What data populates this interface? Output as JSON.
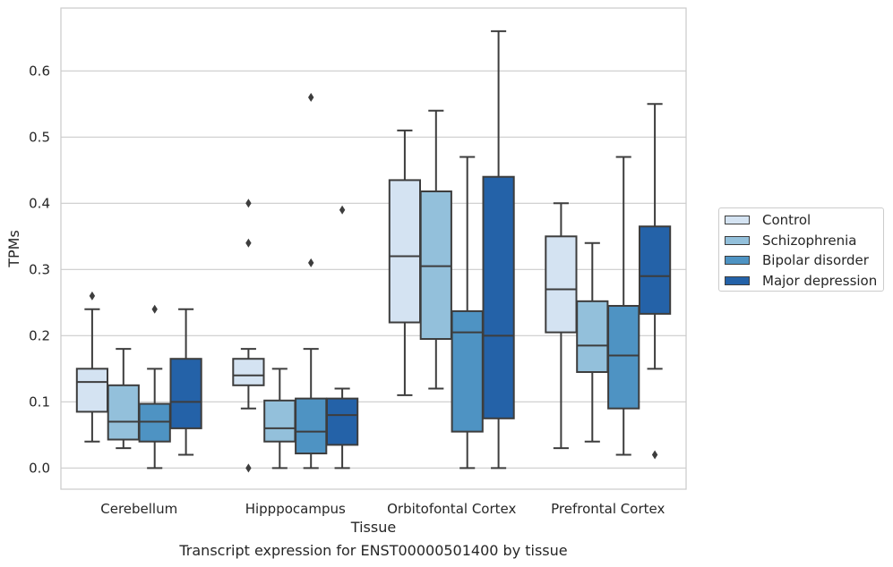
{
  "caption": "Transcript expression for ENST00000501400 by tissue",
  "colors": {
    "Control": "#d4e3f2",
    "Schizophrenia": "#93c0db",
    "Bipolar disorder": "#4e93c3",
    "Major depression": "#2462a8"
  },
  "chart_data": {
    "type": "box",
    "xlabel": "Tissue",
    "ylabel": "TPMs",
    "ylim": [
      -0.032,
      0.695
    ],
    "yticks": [
      0.0,
      0.1,
      0.2,
      0.3,
      0.4,
      0.5,
      0.6
    ],
    "ytick_labels": [
      "0.0",
      "0.1",
      "0.2",
      "0.3",
      "0.4",
      "0.5",
      "0.6"
    ],
    "grid": true,
    "legend_position": "right",
    "categories": [
      "Cerebellum",
      "Hipppocampus",
      "Orbitofontal Cortex",
      "Prefrontal Cortex"
    ],
    "series": [
      {
        "name": "Control",
        "boxes": [
          {
            "whislo": 0.04,
            "q1": 0.085,
            "med": 0.13,
            "q3": 0.15,
            "whishi": 0.24,
            "fliers": [
              0.26
            ]
          },
          {
            "whislo": 0.09,
            "q1": 0.125,
            "med": 0.14,
            "q3": 0.165,
            "whishi": 0.18,
            "fliers": [
              0.4,
              0.34,
              0.0
            ]
          },
          {
            "whislo": 0.11,
            "q1": 0.22,
            "med": 0.32,
            "q3": 0.435,
            "whishi": 0.51,
            "fliers": []
          },
          {
            "whislo": 0.03,
            "q1": 0.205,
            "med": 0.27,
            "q3": 0.35,
            "whishi": 0.4,
            "fliers": []
          }
        ]
      },
      {
        "name": "Schizophrenia",
        "boxes": [
          {
            "whislo": 0.03,
            "q1": 0.043,
            "med": 0.07,
            "q3": 0.125,
            "whishi": 0.18,
            "fliers": []
          },
          {
            "whislo": 0.0,
            "q1": 0.04,
            "med": 0.06,
            "q3": 0.102,
            "whishi": 0.15,
            "fliers": []
          },
          {
            "whislo": 0.12,
            "q1": 0.195,
            "med": 0.305,
            "q3": 0.418,
            "whishi": 0.54,
            "fliers": []
          },
          {
            "whislo": 0.04,
            "q1": 0.145,
            "med": 0.185,
            "q3": 0.252,
            "whishi": 0.34,
            "fliers": []
          }
        ]
      },
      {
        "name": "Bipolar disorder",
        "boxes": [
          {
            "whislo": 0.0,
            "q1": 0.04,
            "med": 0.07,
            "q3": 0.097,
            "whishi": 0.15,
            "fliers": [
              0.24
            ]
          },
          {
            "whislo": 0.0,
            "q1": 0.022,
            "med": 0.055,
            "q3": 0.105,
            "whishi": 0.18,
            "fliers": [
              0.56,
              0.31
            ]
          },
          {
            "whislo": 0.0,
            "q1": 0.055,
            "med": 0.205,
            "q3": 0.237,
            "whishi": 0.47,
            "fliers": []
          },
          {
            "whislo": 0.02,
            "q1": 0.09,
            "med": 0.17,
            "q3": 0.245,
            "whishi": 0.47,
            "fliers": []
          }
        ]
      },
      {
        "name": "Major depression",
        "boxes": [
          {
            "whislo": 0.02,
            "q1": 0.06,
            "med": 0.1,
            "q3": 0.165,
            "whishi": 0.24,
            "fliers": []
          },
          {
            "whislo": 0.0,
            "q1": 0.035,
            "med": 0.08,
            "q3": 0.105,
            "whishi": 0.12,
            "fliers": [
              0.39
            ]
          },
          {
            "whislo": 0.0,
            "q1": 0.075,
            "med": 0.2,
            "q3": 0.44,
            "whishi": 0.66,
            "fliers": []
          },
          {
            "whislo": 0.15,
            "q1": 0.233,
            "med": 0.29,
            "q3": 0.365,
            "whishi": 0.55,
            "fliers": [
              0.02
            ]
          }
        ]
      }
    ]
  }
}
